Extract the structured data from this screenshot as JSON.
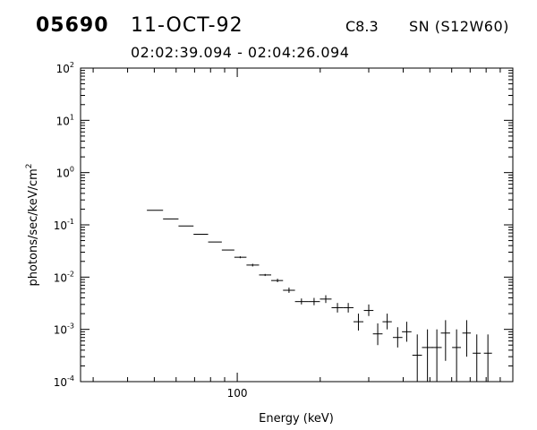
{
  "header": {
    "event_id": "05690",
    "date": "11-OCT-92",
    "flare_class": "C8.3",
    "location": "SN (S12W60)",
    "time_range": "02:02:39.094 - 02:04:26.094"
  },
  "chart_data": {
    "type": "scatter",
    "title": "",
    "xlabel": "Energy (keV)",
    "ylabel": "photons/sec/keV/cm",
    "ylabel_superscript": "2",
    "xscale": "log",
    "yscale": "log",
    "xlim": [
      27,
      1000
    ],
    "ylim": [
      0.0001,
      100
    ],
    "grid": false,
    "x_tick_labels": [
      {
        "value": 100,
        "label": "100"
      }
    ],
    "y_tick_labels": [
      {
        "value": 100,
        "base": "10",
        "exp": "2"
      },
      {
        "value": 10,
        "base": "10",
        "exp": "1"
      },
      {
        "value": 1,
        "base": "10",
        "exp": "0"
      },
      {
        "value": 0.1,
        "base": "10",
        "exp": "-1"
      },
      {
        "value": 0.01,
        "base": "10",
        "exp": "-2"
      },
      {
        "value": 0.001,
        "base": "10",
        "exp": "-3"
      },
      {
        "value": 0.0001,
        "base": "10",
        "exp": "-4"
      }
    ],
    "points": [
      {
        "x": 50.1,
        "xlo": 47.0,
        "xhi": 53.8,
        "y": 0.19,
        "ylo": 0.19,
        "yhi": 0.19
      },
      {
        "x": 57.1,
        "xlo": 53.8,
        "xhi": 61.2,
        "y": 0.13,
        "ylo": 0.13,
        "yhi": 0.13
      },
      {
        "x": 64.9,
        "xlo": 61.2,
        "xhi": 69.4,
        "y": 0.095,
        "ylo": 0.095,
        "yhi": 0.095
      },
      {
        "x": 73.7,
        "xlo": 69.4,
        "xhi": 78.4,
        "y": 0.066,
        "ylo": 0.066,
        "yhi": 0.066
      },
      {
        "x": 83.1,
        "xlo": 78.4,
        "xhi": 87.9,
        "y": 0.047,
        "ylo": 0.047,
        "yhi": 0.047
      },
      {
        "x": 92.5,
        "xlo": 87.9,
        "xhi": 97.6,
        "y": 0.033,
        "ylo": 0.033,
        "yhi": 0.033
      },
      {
        "x": 102.5,
        "xlo": 97.6,
        "xhi": 108.0,
        "y": 0.024,
        "ylo": 0.023,
        "yhi": 0.025
      },
      {
        "x": 113.7,
        "xlo": 108.0,
        "xhi": 120.0,
        "y": 0.017,
        "ylo": 0.016,
        "yhi": 0.018
      },
      {
        "x": 126.2,
        "xlo": 120.0,
        "xhi": 132.8,
        "y": 0.011,
        "ylo": 0.0105,
        "yhi": 0.0115
      },
      {
        "x": 140.0,
        "xlo": 132.8,
        "xhi": 146.6,
        "y": 0.0086,
        "ylo": 0.008,
        "yhi": 0.0093
      },
      {
        "x": 154.1,
        "xlo": 146.6,
        "xhi": 162.0,
        "y": 0.0056,
        "ylo": 0.005,
        "yhi": 0.0063
      },
      {
        "x": 171.0,
        "xlo": 162.0,
        "xhi": 180.5,
        "y": 0.0034,
        "ylo": 0.003,
        "yhi": 0.0039
      },
      {
        "x": 190.0,
        "xlo": 180.5,
        "xhi": 199.5,
        "y": 0.0034,
        "ylo": 0.0029,
        "yhi": 0.004
      },
      {
        "x": 209.5,
        "xlo": 199.5,
        "xhi": 219.9,
        "y": 0.0038,
        "ylo": 0.0032,
        "yhi": 0.0045
      },
      {
        "x": 231.0,
        "xlo": 219.9,
        "xhi": 242.0,
        "y": 0.0026,
        "ylo": 0.0021,
        "yhi": 0.0032
      },
      {
        "x": 252.8,
        "xlo": 242.0,
        "xhi": 264.1,
        "y": 0.0026,
        "ylo": 0.0021,
        "yhi": 0.0032
      },
      {
        "x": 275.2,
        "xlo": 264.1,
        "xhi": 286.9,
        "y": 0.0014,
        "ylo": 0.00095,
        "yhi": 0.002
      },
      {
        "x": 300.0,
        "xlo": 288.0,
        "xhi": 312.0,
        "y": 0.0023,
        "ylo": 0.0018,
        "yhi": 0.003
      },
      {
        "x": 323.4,
        "xlo": 310.6,
        "xhi": 336.7,
        "y": 0.00082,
        "ylo": 0.0005,
        "yhi": 0.0013
      },
      {
        "x": 350.0,
        "xlo": 336.7,
        "xhi": 363.8,
        "y": 0.0014,
        "ylo": 0.001,
        "yhi": 0.002
      },
      {
        "x": 382.0,
        "xlo": 367.0,
        "xhi": 397.5,
        "y": 0.0007,
        "ylo": 0.00045,
        "yhi": 0.0011
      },
      {
        "x": 412.0,
        "xlo": 396.0,
        "xhi": 428.7,
        "y": 0.0009,
        "ylo": 0.00058,
        "yhi": 0.0014
      },
      {
        "x": 450.0,
        "xlo": 432.0,
        "xhi": 468.0,
        "y": 0.00032,
        "ylo": 0.0001,
        "yhi": 0.0008
      },
      {
        "x": 490.0,
        "xlo": 468.0,
        "xhi": 512.5,
        "y": 0.00045,
        "ylo": 0.0001,
        "yhi": 0.001
      },
      {
        "x": 530.0,
        "xlo": 508.0,
        "xhi": 552.0,
        "y": 0.00045,
        "ylo": 0.0001,
        "yhi": 0.001
      },
      {
        "x": 570.0,
        "xlo": 548.0,
        "xhi": 592.0,
        "y": 0.00085,
        "ylo": 0.00025,
        "yhi": 0.0015
      },
      {
        "x": 625.0,
        "xlo": 602.0,
        "xhi": 648.0,
        "y": 0.00045,
        "ylo": 0.0001,
        "yhi": 0.001
      },
      {
        "x": 680.0,
        "xlo": 656.0,
        "xhi": 704.0,
        "y": 0.00085,
        "ylo": 0.0003,
        "yhi": 0.0015
      },
      {
        "x": 740.0,
        "xlo": 715.0,
        "xhi": 765.0,
        "y": 0.00035,
        "ylo": 0.0001,
        "yhi": 0.0008
      },
      {
        "x": 812.0,
        "xlo": 785.0,
        "xhi": 840.0,
        "y": 0.00035,
        "ylo": 0.0001,
        "yhi": 0.0008
      }
    ]
  }
}
